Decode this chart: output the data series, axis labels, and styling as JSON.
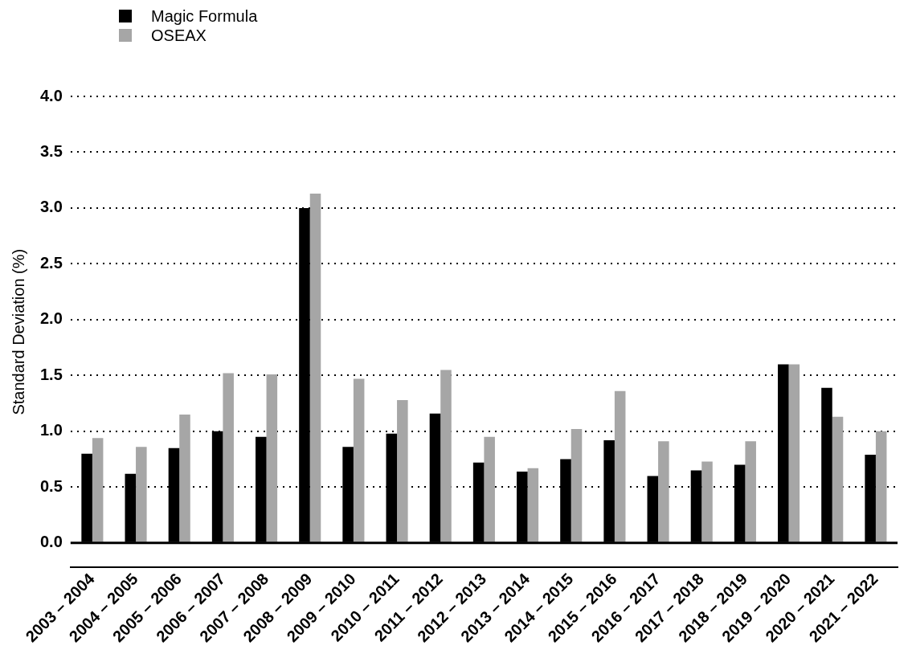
{
  "chart_data": {
    "type": "bar",
    "ylabel": "Standard Deviation (%)",
    "categories": [
      "2003 – 2004",
      "2004 – 2005",
      "2005 – 2006",
      "2006 – 2007",
      "2007 – 2008",
      "2008 – 2009",
      "2009 – 2010",
      "2010 – 2011",
      "2011 – 2012",
      "2012 – 2013",
      "2013 – 2014",
      "2014 – 2015",
      "2015 – 2016",
      "2016 – 2017",
      "2017 – 2018",
      "2018 – 2019",
      "2019 – 2020",
      "2020 – 2021",
      "2021 – 2022"
    ],
    "series": [
      {
        "name": "Magic Formula",
        "color": "#000000",
        "values": [
          0.8,
          0.62,
          0.85,
          1.0,
          0.95,
          3.0,
          0.86,
          0.98,
          1.16,
          0.72,
          0.64,
          0.75,
          0.92,
          0.6,
          0.65,
          0.7,
          1.6,
          1.39,
          0.79
        ]
      },
      {
        "name": "OSEAX",
        "color": "#a6a6a6",
        "values": [
          0.94,
          0.86,
          1.15,
          1.52,
          1.51,
          3.13,
          1.47,
          1.28,
          1.55,
          0.95,
          0.67,
          1.02,
          1.36,
          0.91,
          0.73,
          0.91,
          1.6,
          1.13,
          1.0
        ]
      }
    ],
    "ylim": [
      -0.22,
      4.0
    ],
    "yticks": [
      {
        "value": 0,
        "label": "0.0"
      },
      0.5,
      {
        "value": 1,
        "label": "1.0"
      },
      1.5,
      {
        "value": 2,
        "label": "2.0"
      },
      2.5,
      {
        "value": 3,
        "label": "3.0"
      },
      3.5,
      {
        "value": 4,
        "label": "4.0"
      }
    ],
    "ref_lines": [
      {
        "axis": "y",
        "value": 0,
        "color": "#000000",
        "line_style": "solid"
      }
    ],
    "grid": "y",
    "legend": "top left"
  }
}
